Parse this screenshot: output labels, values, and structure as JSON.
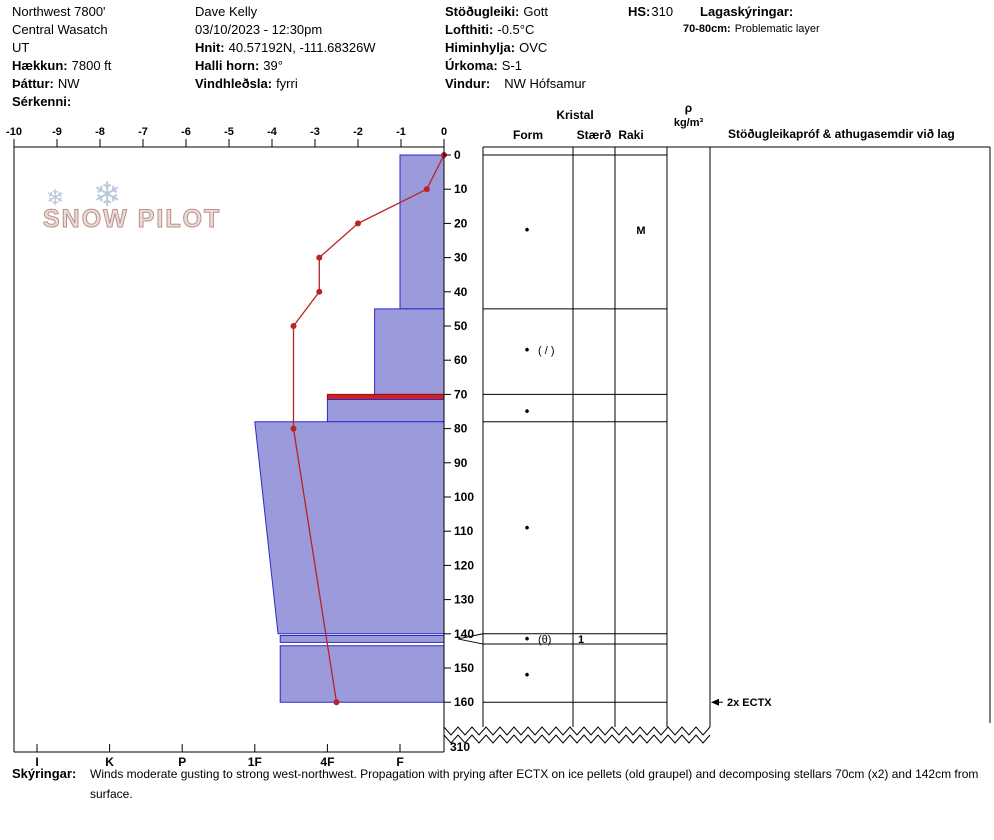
{
  "header": {
    "location": {
      "name": "Northwest 7800'",
      "region": "Central Wasatch",
      "state": "UT",
      "elevation_label": "Hækkun:",
      "elevation_value": "7800 ft",
      "aspect_label": "Þáttur:",
      "aspect_value": "NW",
      "special_label": "Sérkenni:"
    },
    "observer": {
      "name": "Dave Kelly",
      "datetime": "03/10/2023 - 12:30pm",
      "coords_label": "Hnit:",
      "coords_value": "40.57192N, -111.68326W",
      "slope_label": "Halli horn:",
      "slope_value": "39°",
      "windload_label": "Vindhleðsla:",
      "windload_value": "fyrri"
    },
    "conditions": {
      "stability_label": "Stöðugleiki:",
      "stability_value": "Gott",
      "airtemp_label": "Lofthiti:",
      "airtemp_value": "-0.5°C",
      "sky_label": "Himinhylja:",
      "sky_value": "OVC",
      "precip_label": "Úrkoma:",
      "precip_value": "S-1",
      "wind_label": "Vindur:",
      "wind_value": "NW Hófsamur"
    },
    "totals": {
      "hs_label": "HS:",
      "hs_value": "310",
      "layer_notes_label": "Lagaskýringar:",
      "layer_note_depth": "70-80cm:",
      "layer_note_text": "Problematic layer"
    }
  },
  "watermark": {
    "text": "SNOW PILOT",
    "flake": "❄"
  },
  "chart_data": {
    "type": "snow-profile",
    "title": "Snow pit profile",
    "temp_axis": {
      "label_values": [
        -10,
        -9,
        -8,
        -7,
        -6,
        -5,
        -4,
        -3,
        -2,
        -1,
        0
      ],
      "min": -10,
      "max": 0,
      "unit": "°C"
    },
    "depth_axis": {
      "ticks": [
        0,
        10,
        20,
        30,
        40,
        50,
        60,
        70,
        80,
        90,
        100,
        110,
        120,
        130,
        140,
        150,
        160
      ],
      "unit": "cm",
      "total_label": "310"
    },
    "hardness_axis": {
      "labels": [
        "I",
        "K",
        "P",
        "1F",
        "4F",
        "F"
      ],
      "indices": {
        "I": 6,
        "K": 5,
        "P": 4,
        "1F": 3,
        "4F": 2,
        "F": 1
      }
    },
    "column_headers": {
      "kristal": "Kristal",
      "form": "Form",
      "size": "Stærð",
      "moisture": "Raki",
      "density_top": "ρ",
      "density_bottom": "kg/m³",
      "stability": "Stöðugleikapróf & athugasemdir við lag"
    },
    "colors": {
      "layer_fill": "#9b9bdb",
      "layer_stroke": "#2a2ac8",
      "problem_fill": "#cc2222",
      "problem_stroke": "#991111",
      "temp_line": "#bb2222"
    },
    "layers": [
      {
        "top_cm": 0,
        "bottom_cm": 45,
        "hardness": "F",
        "h_top": 1.0,
        "h_bot": 1.0,
        "problem": false
      },
      {
        "top_cm": 45,
        "bottom_cm": 70,
        "hardness": "F+",
        "h_top": 1.35,
        "h_bot": 1.35,
        "problem": false
      },
      {
        "top_cm": 70,
        "bottom_cm": 71.5,
        "hardness": "4F",
        "h_top": 2.0,
        "h_bot": 2.0,
        "problem": true
      },
      {
        "top_cm": 71.5,
        "bottom_cm": 78,
        "hardness": "4F",
        "h_top": 2.0,
        "h_bot": 2.0,
        "problem": false
      },
      {
        "top_cm": 78,
        "bottom_cm": 140,
        "hardness": "1F",
        "h_top": 3.0,
        "h_bot": 2.68,
        "problem": false
      },
      {
        "top_cm": 140.5,
        "bottom_cm": 142.5,
        "hardness": "1F-4F",
        "h_top": 2.65,
        "h_bot": 2.65,
        "problem": false
      },
      {
        "top_cm": 143.5,
        "bottom_cm": 160,
        "hardness": "1F-4F",
        "h_top": 2.65,
        "h_bot": 2.65,
        "problem": false
      }
    ],
    "temperature_profile": {
      "depths_cm": [
        0,
        10,
        20,
        30,
        40,
        50,
        80,
        160
      ],
      "temps_c": [
        0,
        -0.4,
        -2,
        -2.9,
        -2.9,
        -3.5,
        -3.5,
        -2.5
      ]
    },
    "grains": [
      {
        "depth_cm": 22,
        "form": "•",
        "form2": "",
        "size": "",
        "moisture": "M"
      },
      {
        "depth_cm": 57,
        "form": "•",
        "form2": "( / )",
        "size": "",
        "moisture": ""
      },
      {
        "depth_cm": 75,
        "form": "•",
        "form2": "",
        "size": "",
        "moisture": ""
      },
      {
        "depth_cm": 109,
        "form": "•",
        "form2": "",
        "size": "",
        "moisture": ""
      },
      {
        "depth_cm": 141.5,
        "form": "•",
        "form2": "(θ)",
        "size": "1",
        "moisture": ""
      },
      {
        "depth_cm": 152,
        "form": "•",
        "form2": "",
        "size": "",
        "moisture": ""
      }
    ],
    "layer_boundaries_cm": [
      0,
      45,
      70,
      78,
      140,
      143,
      160
    ],
    "flagged_layer": {
      "top_cm": 140,
      "bottom_cm": 143
    },
    "tests": [
      {
        "depth_cm": 160,
        "label": "2x ECTX"
      }
    ],
    "table_column_x": [
      483,
      573,
      615,
      667,
      710
    ]
  },
  "footer": {
    "label": "Skýringar:",
    "line1": "Winds moderate gusting to strong west-northwest. Propagation with prying after ECTX on ice pellets (old graupel) and decomposing stellars 70cm (x2) and 142cm from",
    "line2": "surface."
  }
}
